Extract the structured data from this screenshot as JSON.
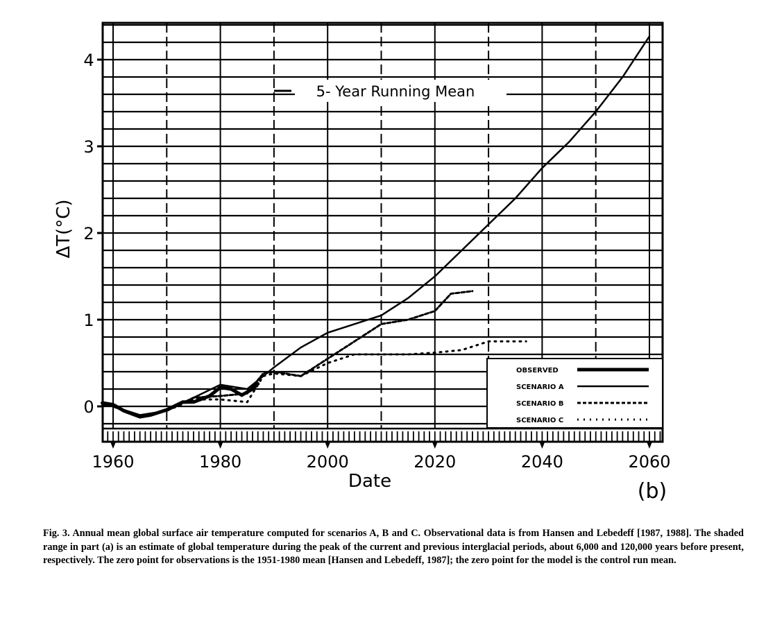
{
  "chart_data": {
    "type": "line",
    "title": "5- Year Running Mean",
    "xlabel": "Date",
    "ylabel": "ΔT(°C)",
    "panel_label": "(b)",
    "xlim": [
      1958,
      2062
    ],
    "ylim": [
      -0.25,
      4.4
    ],
    "xticks": [
      1960,
      1980,
      2000,
      2020,
      2040,
      2060
    ],
    "yticks": [
      0,
      1,
      2,
      3,
      4
    ],
    "grid": true,
    "legend_position": "bottom-right",
    "series": [
      {
        "name": "OBSERVED",
        "style": "thick-solid",
        "x": [
          1958,
          1960,
          1962,
          1965,
          1967,
          1970,
          1973,
          1975,
          1978,
          1980,
          1982,
          1984,
          1986,
          1987
        ],
        "y": [
          0.04,
          0.02,
          -0.05,
          -0.12,
          -0.1,
          -0.04,
          0.05,
          0.05,
          0.12,
          0.22,
          0.2,
          0.13,
          0.2,
          0.26
        ]
      },
      {
        "name": "SCENARIO A",
        "style": "solid",
        "x": [
          1958,
          1960,
          1965,
          1970,
          1975,
          1980,
          1985,
          1990,
          1995,
          2000,
          2005,
          2010,
          2015,
          2020,
          2025,
          2030,
          2035,
          2040,
          2045,
          2050,
          2055,
          2060
        ],
        "y": [
          0.02,
          0.0,
          -0.1,
          -0.05,
          0.1,
          0.25,
          0.2,
          0.45,
          0.68,
          0.85,
          0.95,
          1.05,
          1.25,
          1.5,
          1.8,
          2.1,
          2.4,
          2.75,
          3.05,
          3.4,
          3.8,
          4.27
        ]
      },
      {
        "name": "SCENARIO B",
        "style": "dashed",
        "x": [
          1958,
          1960,
          1965,
          1970,
          1975,
          1980,
          1985,
          1988,
          1990,
          1995,
          2000,
          2005,
          2010,
          2015,
          2020,
          2023,
          2027
        ],
        "y": [
          0.02,
          0.0,
          -0.12,
          -0.05,
          0.1,
          0.12,
          0.15,
          0.38,
          0.4,
          0.35,
          0.55,
          0.75,
          0.95,
          1.0,
          1.1,
          1.3,
          1.33
        ]
      },
      {
        "name": "SCENARIO C",
        "style": "dotted",
        "x": [
          1958,
          1960,
          1965,
          1970,
          1975,
          1980,
          1985,
          1988,
          1990,
          1995,
          2000,
          2005,
          2010,
          2015,
          2020,
          2025,
          2030,
          2037
        ],
        "y": [
          0.02,
          0.0,
          -0.12,
          -0.05,
          0.08,
          0.08,
          0.05,
          0.35,
          0.38,
          0.35,
          0.5,
          0.6,
          0.6,
          0.6,
          0.62,
          0.65,
          0.75,
          0.75
        ]
      }
    ]
  },
  "caption": "Fig. 3.  Annual mean global surface air temperature computed for scenarios A, B and C.  Observational data is from Hansen and Lebedeff [1987, 1988].  The shaded range in part (a) is an estimate of global temperature during the peak of the current and previous interglacial periods, about 6,000 and 120,000 years before present, respectively.  The zero point for observations is the 1951-1980 mean [Hansen and Lebedeff, 1987]; the zero point for the model is the control run mean."
}
